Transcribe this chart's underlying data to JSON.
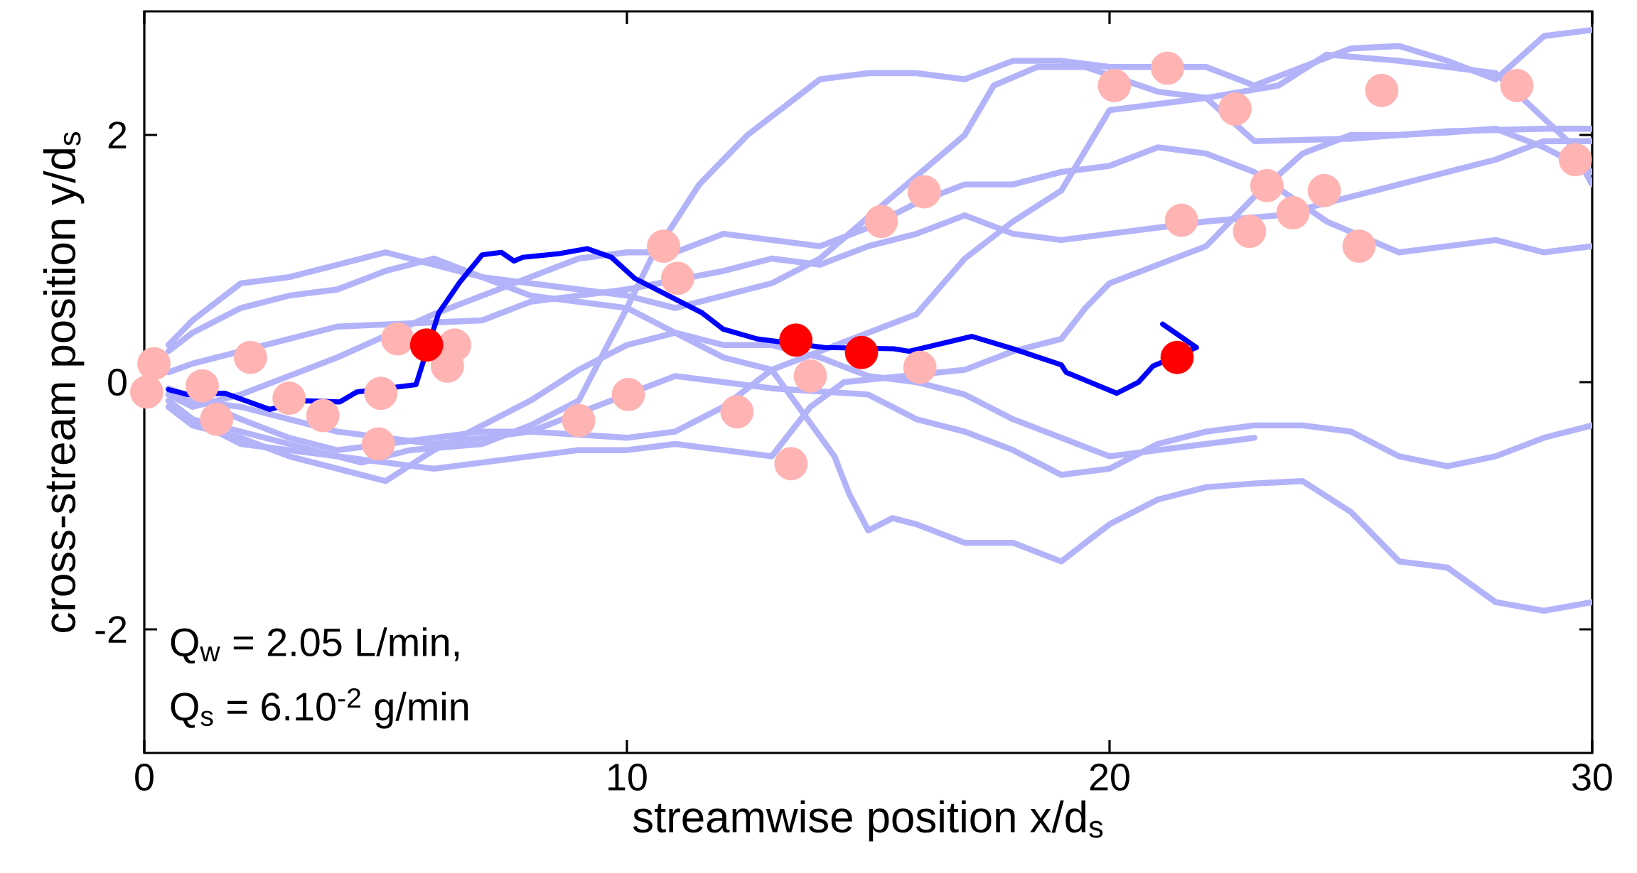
{
  "chart_data": {
    "type": "line",
    "xlabel": "streamwise position x/d$_{s}$",
    "ylabel": "cross-stream position y/d$_{s}$",
    "xlim": [
      0,
      30
    ],
    "ylim": [
      -3,
      3
    ],
    "xticks": [
      0,
      10,
      20,
      30
    ],
    "yticks": [
      -2,
      0,
      2
    ],
    "annotations": [
      "Q$_{w}$ = 2.05 L/min,",
      "Q$_{s}$ = 6.10$^{-2}$ g/min"
    ],
    "series": [
      {
        "color": "#b3b3fa",
        "marker": "none",
        "x": [
          0.5,
          1,
          2,
          3,
          4.5,
          5.5,
          7,
          8,
          9,
          10,
          10.5,
          11.5,
          12.5,
          14,
          15,
          16,
          17,
          18,
          19,
          20,
          22,
          23,
          24,
          25,
          26,
          27,
          28,
          29,
          30
        ],
        "values": [
          -0.15,
          -0.3,
          -0.4,
          -0.5,
          -0.65,
          -0.55,
          -0.5,
          -0.35,
          -0.15,
          0.6,
          1.0,
          1.6,
          2.0,
          2.45,
          2.5,
          2.5,
          2.45,
          2.6,
          2.6,
          2.55,
          2.55,
          2.4,
          2.55,
          2.7,
          2.72,
          2.6,
          2.45,
          2.8,
          2.85
        ]
      },
      {
        "color": "#b3b3fa",
        "marker": "none",
        "x": [
          0.5,
          1,
          2,
          3,
          4,
          5,
          6,
          7,
          8,
          9,
          10,
          11,
          12,
          13,
          14,
          17,
          17.6,
          18.5,
          19.5,
          21,
          22,
          23.5,
          24.5,
          26,
          27,
          28,
          29.5,
          30
        ],
        "values": [
          0.3,
          0.5,
          0.8,
          0.85,
          0.95,
          1.05,
          0.95,
          0.85,
          0.8,
          0.75,
          0.7,
          0.6,
          0.7,
          0.8,
          1.0,
          2.0,
          2.4,
          2.55,
          2.55,
          2.35,
          2.3,
          2.4,
          2.65,
          2.6,
          2.55,
          2.5,
          1.95,
          1.6
        ]
      },
      {
        "color": "#b3b3fa",
        "marker": "none",
        "x": [
          0.5,
          1,
          2,
          3,
          4,
          5,
          6,
          7,
          8,
          9,
          10,
          11,
          12,
          13,
          16,
          17,
          18,
          19,
          20,
          22,
          23,
          25,
          27,
          29,
          30
        ],
        "values": [
          0.25,
          0.4,
          0.6,
          0.7,
          0.75,
          0.9,
          1.0,
          0.85,
          0.7,
          0.65,
          0.6,
          0.4,
          0.2,
          0.1,
          0.55,
          1.0,
          1.3,
          1.55,
          2.2,
          2.3,
          1.95,
          1.97,
          2.03,
          2.05,
          2.05
        ]
      },
      {
        "color": "#b3b3fa",
        "marker": "none",
        "x": [
          0.5,
          1,
          2,
          3,
          4,
          6,
          7,
          8,
          9,
          10,
          11,
          12,
          13,
          14,
          15,
          16,
          17,
          18,
          19,
          20,
          21,
          22,
          23,
          24.5,
          26,
          27,
          28,
          29,
          30
        ],
        "values": [
          -0.1,
          -0.2,
          -0.1,
          0.05,
          0.2,
          0.55,
          0.7,
          0.85,
          1.0,
          1.05,
          1.05,
          1.2,
          1.15,
          1.1,
          1.25,
          1.45,
          1.6,
          1.6,
          1.7,
          1.75,
          1.9,
          1.85,
          1.7,
          1.3,
          1.05,
          1.1,
          1.15,
          1.05,
          1.1
        ]
      },
      {
        "color": "#b3b3fa",
        "marker": "none",
        "x": [
          0.5,
          1,
          3,
          4,
          7,
          8,
          9,
          10,
          12,
          13,
          14,
          15,
          16,
          17,
          18,
          19,
          20,
          21,
          22,
          23.5,
          25,
          26,
          27,
          28,
          29,
          30
        ],
        "values": [
          0.08,
          0.15,
          0.35,
          0.45,
          0.5,
          0.65,
          0.7,
          0.75,
          0.9,
          1.0,
          0.95,
          1.1,
          1.2,
          1.35,
          1.2,
          1.15,
          1.2,
          1.25,
          1.3,
          1.35,
          1.5,
          1.6,
          1.7,
          1.8,
          1.95,
          1.95
        ]
      },
      {
        "color": "#b3b3fa",
        "marker": "none",
        "x": [
          0.5,
          1,
          2,
          3,
          4,
          5,
          6,
          7,
          8,
          9,
          10,
          11,
          12,
          13,
          13.8,
          14.5,
          17,
          18,
          19,
          19.5,
          20,
          21,
          22,
          23,
          24,
          25,
          26,
          27,
          28,
          29,
          30
        ],
        "values": [
          -0.15,
          -0.3,
          -0.5,
          -0.55,
          -0.6,
          -0.65,
          -0.7,
          -0.65,
          -0.6,
          -0.55,
          -0.55,
          -0.5,
          -0.55,
          -0.6,
          -0.2,
          0.0,
          0.1,
          0.25,
          0.35,
          0.6,
          0.8,
          0.95,
          1.1,
          1.5,
          1.85,
          2.0,
          2.0,
          2.02,
          2.05,
          1.9,
          1.7
        ]
      },
      {
        "color": "#b3b3fa",
        "marker": "none",
        "x": [
          0.5,
          1,
          2,
          3,
          4,
          6,
          7,
          8,
          10,
          11,
          12,
          13,
          14.3,
          14.6,
          15,
          15.5,
          16,
          17,
          18,
          19,
          19.5,
          20,
          21,
          22,
          23,
          24,
          25,
          26,
          27,
          28,
          29,
          30
        ],
        "values": [
          -0.1,
          -0.15,
          -0.2,
          -0.3,
          -0.4,
          -0.5,
          -0.45,
          -0.4,
          -0.45,
          -0.4,
          -0.2,
          0.1,
          -0.6,
          -0.9,
          -1.2,
          -1.1,
          -1.15,
          -1.3,
          -1.3,
          -1.45,
          -1.3,
          -1.15,
          -0.95,
          -0.85,
          -0.82,
          -0.8,
          -1.05,
          -1.45,
          -1.5,
          -1.78,
          -1.85,
          -1.78
        ]
      },
      {
        "color": "#b3b3fa",
        "marker": "none",
        "x": [
          0.5,
          2,
          3,
          4,
          6,
          7,
          8,
          11,
          13,
          15,
          16,
          17,
          18,
          19,
          20,
          21,
          22,
          23,
          24,
          25,
          26,
          27,
          28,
          29,
          30
        ],
        "values": [
          -0.05,
          -0.3,
          -0.45,
          -0.55,
          -0.45,
          -0.4,
          -0.4,
          0.05,
          -0.05,
          -0.1,
          -0.3,
          -0.4,
          -0.55,
          -0.75,
          -0.7,
          -0.5,
          -0.4,
          -0.35,
          -0.35,
          -0.4,
          -0.6,
          -0.68,
          -0.6,
          -0.45,
          -0.35
        ]
      },
      {
        "color": "#b3b3fa",
        "marker": "none",
        "x": [
          0.5,
          1,
          2,
          3,
          4,
          5,
          6,
          7,
          8,
          9,
          10,
          11,
          12,
          13,
          14,
          15,
          16,
          17,
          18,
          19,
          20,
          21,
          22,
          23
        ],
        "values": [
          -0.2,
          -0.35,
          -0.45,
          -0.6,
          -0.7,
          -0.8,
          -0.55,
          -0.35,
          -0.15,
          0.1,
          0.3,
          0.4,
          0.3,
          0.3,
          0.2,
          0.05,
          0.0,
          -0.1,
          -0.3,
          -0.45,
          -0.6,
          -0.55,
          -0.5,
          -0.45
        ]
      },
      {
        "type": "scatter",
        "color": "#ffb3b3",
        "marker": "circle",
        "x": [
          0.2,
          0.05,
          1.2,
          1.5,
          2.2,
          3.0,
          3.7,
          4.9,
          4.85,
          5.25,
          6.43,
          6.28,
          9.0,
          10.03,
          10.76,
          11.05,
          12.28,
          13.4,
          13.8,
          15.27,
          16.16,
          16.07,
          20.1,
          21.2,
          22.6,
          21.49,
          23.26,
          22.9,
          23.8,
          24.45,
          25.17,
          25.64,
          28.44,
          29.65
        ],
        "values": [
          0.15,
          -0.08,
          -0.03,
          -0.3,
          0.2,
          -0.13,
          -0.27,
          -0.09,
          -0.5,
          0.35,
          0.3,
          0.13,
          -0.31,
          -0.1,
          1.1,
          0.84,
          -0.24,
          -0.66,
          0.05,
          1.3,
          1.54,
          0.12,
          2.4,
          2.54,
          2.21,
          1.31,
          1.59,
          1.22,
          1.37,
          1.55,
          1.1,
          2.36,
          2.4,
          1.8
        ]
      },
      {
        "color": "#0000ff",
        "marker": "none",
        "x": [
          0.5,
          0.9,
          1.67,
          2.6,
          3.3,
          4.05,
          4.4,
          5.63,
          6.1,
          6.54,
          7.0,
          7.4,
          7.66,
          7.84,
          8.6,
          9.18,
          9.68,
          10.16,
          11.56,
          11.99,
          12.7,
          14.1,
          15.53,
          15.85,
          17.15,
          18.0,
          19.0,
          19.1,
          20.15,
          20.6,
          20.9,
          21.8,
          21.1
        ],
        "values": [
          -0.06,
          -0.1,
          -0.09,
          -0.22,
          -0.15,
          -0.16,
          -0.08,
          -0.02,
          0.56,
          0.81,
          1.03,
          1.05,
          0.98,
          1.01,
          1.04,
          1.08,
          1.01,
          0.84,
          0.56,
          0.43,
          0.35,
          0.28,
          0.27,
          0.25,
          0.37,
          0.27,
          0.14,
          0.08,
          -0.09,
          0,
          0.13,
          0.28,
          0.47
        ]
      },
      {
        "type": "scatter",
        "color": "#ff0000",
        "marker": "circle",
        "x": [
          5.85,
          13.5,
          14.86,
          21.4
        ],
        "values": [
          0.3,
          0.34,
          0.24,
          0.2
        ]
      }
    ]
  }
}
